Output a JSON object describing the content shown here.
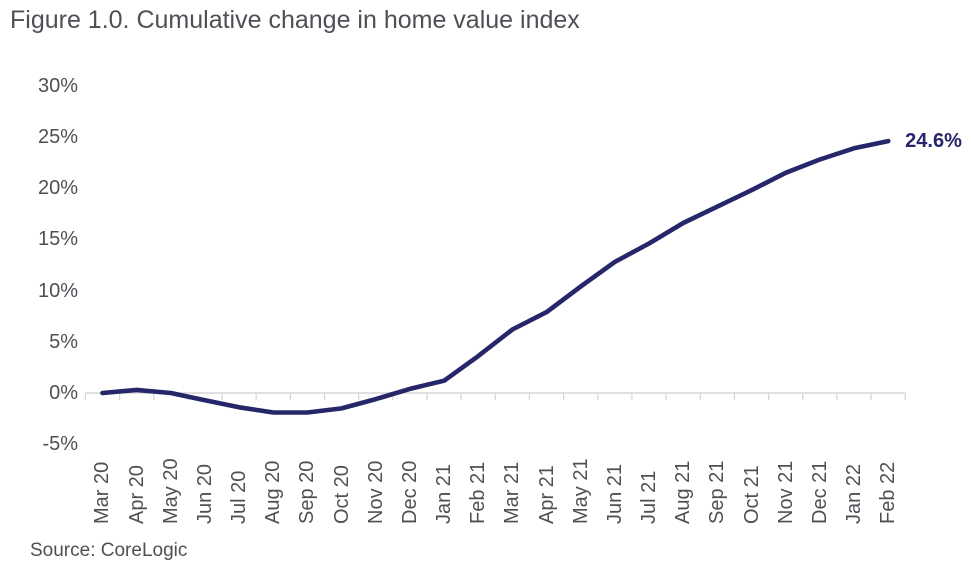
{
  "chart": {
    "title": "Figure 1.0. Cumulative change in home value index",
    "source": "Source: CoreLogic",
    "end_label": "24.6%"
  },
  "chart_data": {
    "type": "line",
    "title": "Figure 1.0. Cumulative change in home value index",
    "categories": [
      "Mar 20",
      "Apr 20",
      "May 20",
      "Jun 20",
      "Jul 20",
      "Aug 20",
      "Sep 20",
      "Oct 20",
      "Nov 20",
      "Dec 20",
      "Jan 21",
      "Feb 21",
      "Mar 21",
      "Apr 21",
      "May 21",
      "Jun 21",
      "Jul 21",
      "Aug 21",
      "Sep 21",
      "Oct 21",
      "Nov 21",
      "Dec 21",
      "Jan 22",
      "Feb 22"
    ],
    "series": [
      {
        "name": "Cumulative change in home value index",
        "values": [
          0.0,
          0.3,
          0.0,
          -0.7,
          -1.4,
          -1.9,
          -1.9,
          -1.5,
          -0.6,
          0.4,
          1.2,
          3.6,
          6.2,
          7.9,
          10.4,
          12.8,
          14.6,
          16.6,
          18.2,
          19.8,
          21.5,
          22.8,
          23.9,
          24.6
        ]
      }
    ],
    "ylabel": "",
    "xlabel": "",
    "ylim": [
      -5,
      30
    ],
    "ytick_values": [
      30,
      25,
      20,
      15,
      10,
      5,
      0,
      -5
    ],
    "ytick_labels": [
      "30%",
      "25%",
      "20%",
      "15%",
      "10%",
      "5%",
      "0%",
      "-5%"
    ],
    "grid": "off",
    "legend_position": "none",
    "zero_axis_line": true,
    "annotations": [
      {
        "text": "24.6%",
        "x": "Feb 22",
        "y": 24.6,
        "position": "right-of-last-point"
      }
    ],
    "colors": {
      "line": "#26276b",
      "annotation_text": "#26276b",
      "axis_line": "#d6d6d6",
      "tick_marks": "#d6d6d6",
      "text": "#4d5156"
    }
  }
}
